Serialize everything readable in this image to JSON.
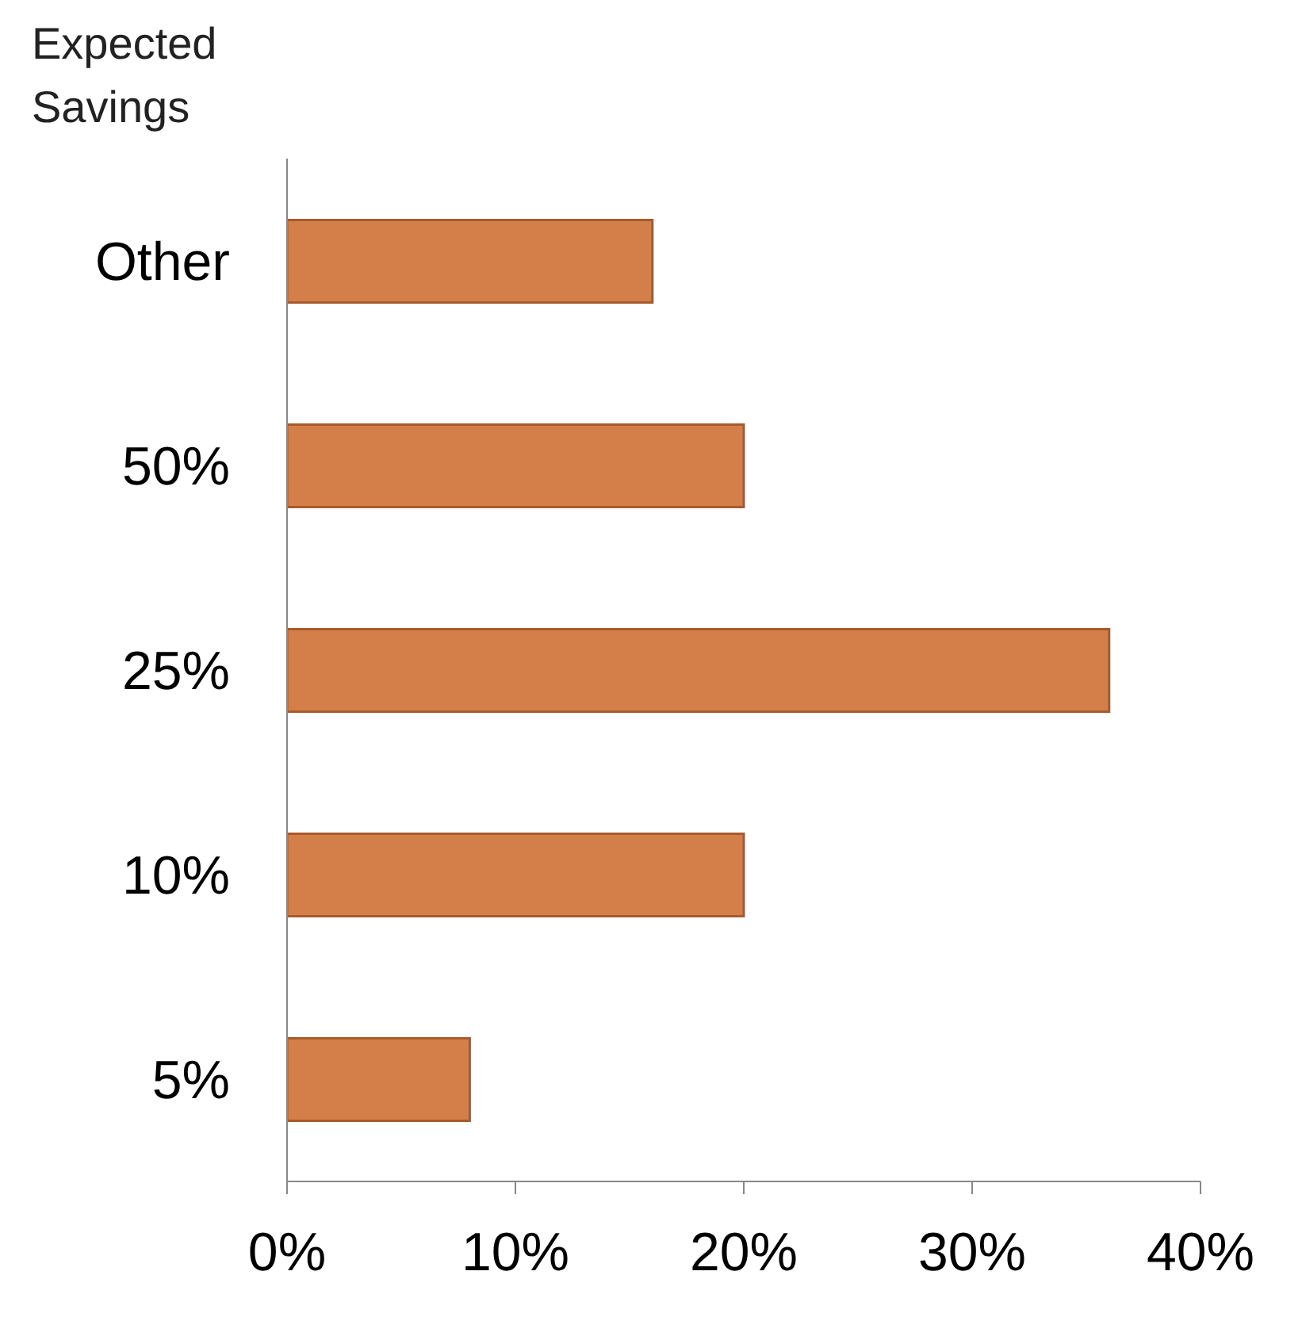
{
  "chart_data": {
    "type": "bar",
    "orientation": "horizontal",
    "ylabel": "Expected Savings",
    "categories": [
      "Other",
      "50%",
      "25%",
      "10%",
      "5%"
    ],
    "values": [
      16,
      20,
      36,
      20,
      8
    ],
    "color": "#d47f4a",
    "xlim": [
      0,
      40
    ],
    "xticks": [
      {
        "value": 0,
        "label": "0%"
      },
      {
        "value": 10,
        "label": "10%"
      },
      {
        "value": 20,
        "label": "20%"
      },
      {
        "value": 30,
        "label": "30%"
      },
      {
        "value": 40,
        "label": "40%"
      }
    ],
    "grid": false,
    "legend": false
  }
}
